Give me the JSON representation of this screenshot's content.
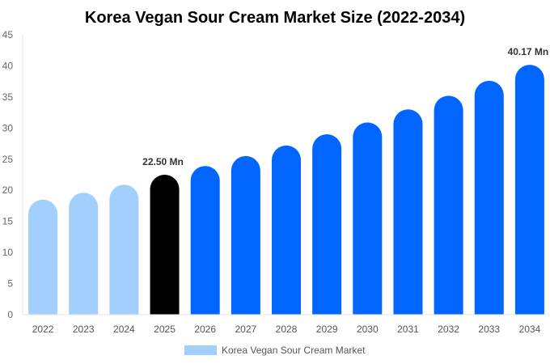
{
  "chart_data": {
    "type": "bar",
    "title": "Korea Vegan Sour Cream Market Size (2022-2034)",
    "xlabel": "",
    "ylabel": "",
    "ylim": [
      0,
      45
    ],
    "yticks": [
      0,
      5,
      10,
      15,
      20,
      25,
      30,
      35,
      40,
      45
    ],
    "grid": false,
    "legend_position": "bottom",
    "categories": [
      "2022",
      "2023",
      "2024",
      "2025",
      "2026",
      "2027",
      "2028",
      "2029",
      "2030",
      "2031",
      "2032",
      "2033",
      "2034"
    ],
    "series": [
      {
        "name": "Korea Vegan Sour Cream Market",
        "values": [
          18.5,
          19.6,
          20.9,
          22.5,
          23.9,
          25.5,
          27.2,
          29.0,
          30.9,
          33.0,
          35.2,
          37.6,
          40.17
        ],
        "colors": [
          "#a3cfff",
          "#a3cfff",
          "#a3cfff",
          "#000000",
          "#0066ff",
          "#0066ff",
          "#0066ff",
          "#0066ff",
          "#0066ff",
          "#0066ff",
          "#0066ff",
          "#0066ff",
          "#0066ff"
        ]
      }
    ],
    "data_labels": [
      {
        "category": "2025",
        "text": "22.50 Mn"
      },
      {
        "category": "2034",
        "text": "40.17 Mn"
      }
    ],
    "legend_color": "#a3cfff"
  }
}
